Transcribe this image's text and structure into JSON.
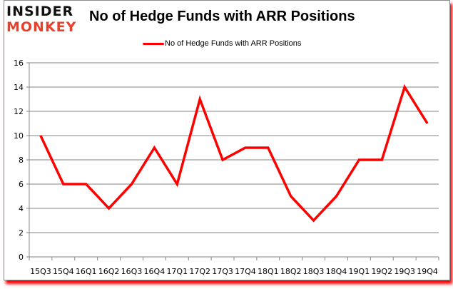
{
  "logo": {
    "line1": "INSIDER",
    "line2": "MONKEY"
  },
  "chart_data": {
    "type": "line",
    "title": "No of Hedge Funds with ARR Positions",
    "xlabel": "",
    "ylabel": "",
    "categories": [
      "15Q3",
      "15Q4",
      "16Q1",
      "16Q2",
      "16Q3",
      "16Q4",
      "17Q1",
      "17Q2",
      "17Q3",
      "17Q4",
      "18Q1",
      "18Q2",
      "18Q3",
      "18Q4",
      "19Q1",
      "19Q2",
      "19Q3",
      "19Q4"
    ],
    "series": [
      {
        "name": "No of Hedge Funds with ARR Positions",
        "color": "#ff0000",
        "values": [
          10,
          6,
          6,
          4,
          6,
          9,
          6,
          13,
          8,
          9,
          9,
          5,
          3,
          5,
          8,
          8,
          14,
          11
        ]
      }
    ],
    "ylim": [
      0,
      16
    ],
    "yticks": [
      0,
      2,
      4,
      6,
      8,
      10,
      12,
      14,
      16
    ],
    "grid": true,
    "legend_position": "top"
  }
}
